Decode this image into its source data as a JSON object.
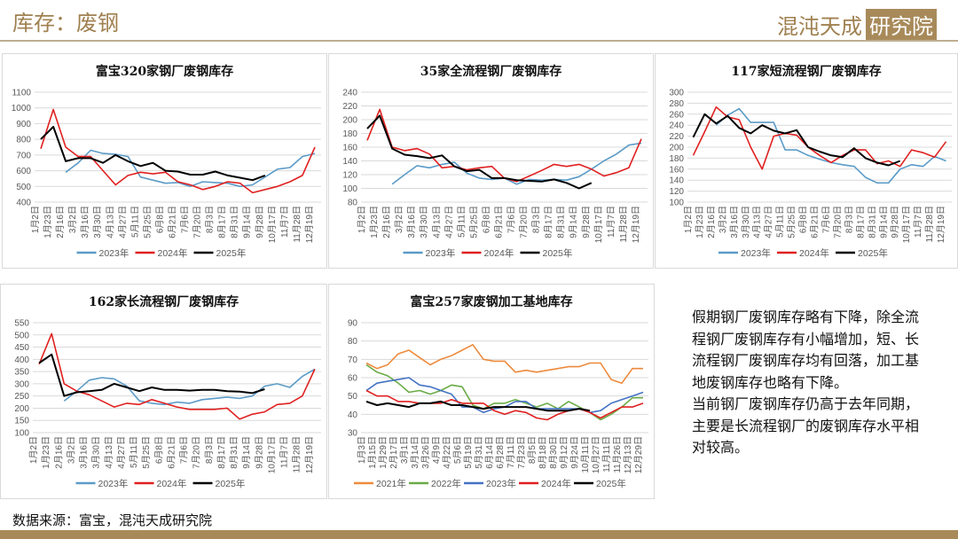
{
  "header": {
    "title": "库存：废钢",
    "logo_text": "混沌天成",
    "logo_box": "研究院"
  },
  "note": [
    "假期钢厂废钢库存略有下降，除全流程钢厂废钢库存有小幅增加，短、长流程钢厂废钢库存均有回落，加工基地废钢库存也略有下降。",
    "当前钢厂废钢库存仍高于去年同期，主要是长流程钢厂的废钢库存水平相对较高。"
  ],
  "source": "数据来源：富宝，混沌天成研究院",
  "chart_data": [
    {
      "type": "line",
      "title": "富宝320家钢厂废钢库存",
      "ylim": [
        400,
        1100
      ],
      "ystep": 100,
      "categories": [
        "1月2日",
        "1月23日",
        "2月16日",
        "3月2日",
        "3月16日",
        "3月30日",
        "4月13日",
        "4月27日",
        "5月11日",
        "5月25日",
        "6月8日",
        "6月21日",
        "7月6日",
        "7月20日",
        "8月3日",
        "8月17日",
        "8月31日",
        "9月14日",
        "9月28日",
        "10月17日",
        "11月7日",
        "11月28日",
        "12月19日"
      ],
      "series": [
        {
          "name": "2023年",
          "color": "#5b9bc8",
          "values": [
            null,
            null,
            590,
            650,
            730,
            710,
            705,
            690,
            560,
            540,
            520,
            525,
            500,
            530,
            525,
            520,
            500,
            510,
            560,
            610,
            620,
            690,
            710
          ]
        },
        {
          "name": "2024年",
          "color": "#e02020",
          "values": [
            740,
            990,
            750,
            690,
            690,
            600,
            510,
            570,
            590,
            580,
            590,
            530,
            510,
            480,
            500,
            530,
            520,
            460,
            480,
            500,
            530,
            570,
            750
          ]
        },
        {
          "name": "2025年",
          "color": "#000000",
          "values": [
            800,
            880,
            660,
            680,
            680,
            650,
            700,
            660,
            630,
            650,
            600,
            595,
            575,
            575,
            595,
            570,
            555,
            540,
            570,
            null,
            null,
            null,
            null
          ]
        }
      ]
    },
    {
      "type": "line",
      "title": "35家全流程钢厂废钢库存",
      "ylim": [
        80,
        240
      ],
      "ystep": 20,
      "categories": [
        "1月2日",
        "1月23日",
        "2月16日",
        "3月2日",
        "3月16日",
        "3月30日",
        "4月13日",
        "4月27日",
        "5月11日",
        "5月25日",
        "6月8日",
        "6月21日",
        "7月6日",
        "7月20日",
        "8月3日",
        "8月17日",
        "8月31日",
        "9月14日",
        "9月28日",
        "10月17日",
        "11月7日",
        "11月28日",
        "12月19日"
      ],
      "series": [
        {
          "name": "2023年",
          "color": "#5b9bc8",
          "values": [
            null,
            null,
            106,
            120,
            133,
            130,
            135,
            138,
            122,
            115,
            113,
            115,
            106,
            113,
            112,
            113,
            112,
            117,
            128,
            140,
            150,
            163,
            166
          ]
        },
        {
          "name": "2024年",
          "color": "#e02020",
          "values": [
            170,
            215,
            160,
            155,
            158,
            150,
            130,
            132,
            127,
            130,
            132,
            115,
            110,
            118,
            126,
            135,
            132,
            135,
            128,
            118,
            123,
            130,
            172
          ]
        },
        {
          "name": "2025年",
          "color": "#000000",
          "values": [
            187,
            206,
            158,
            149,
            147,
            144,
            148,
            132,
            125,
            127,
            115,
            115,
            112,
            111,
            110,
            113,
            108,
            100,
            108,
            null,
            null,
            null,
            null
          ]
        }
      ]
    },
    {
      "type": "line",
      "title": "117家短流程钢厂废钢库存",
      "ylim": [
        100,
        300
      ],
      "ystep": 20,
      "categories": [
        "1月2日",
        "1月23日",
        "2月16日",
        "3月2日",
        "3月16日",
        "3月30日",
        "4月13日",
        "4月27日",
        "5月11日",
        "5月25日",
        "6月8日",
        "6月21日",
        "7月6日",
        "7月20日",
        "8月3日",
        "8月17日",
        "8月31日",
        "9月14日",
        "9月28日",
        "10月17日",
        "11月7日",
        "11月28日",
        "12月19日"
      ],
      "series": [
        {
          "name": "2023年",
          "color": "#5b9bc8",
          "values": [
            null,
            null,
            240,
            258,
            270,
            245,
            245,
            245,
            195,
            195,
            185,
            178,
            172,
            168,
            165,
            145,
            135,
            135,
            160,
            168,
            165,
            183,
            175
          ]
        },
        {
          "name": "2024年",
          "color": "#e02020",
          "values": [
            185,
            228,
            273,
            255,
            250,
            200,
            160,
            220,
            225,
            222,
            200,
            185,
            172,
            185,
            195,
            195,
            170,
            175,
            165,
            195,
            190,
            182,
            210
          ]
        },
        {
          "name": "2025年",
          "color": "#000000",
          "values": [
            218,
            260,
            243,
            257,
            235,
            225,
            240,
            230,
            225,
            231,
            200,
            192,
            185,
            182,
            198,
            180,
            172,
            167,
            175,
            null,
            null,
            null,
            null
          ]
        }
      ]
    },
    {
      "type": "line",
      "title": "162家长流程钢厂废钢库存",
      "ylim": [
        100,
        550
      ],
      "ystep": 50,
      "categories": [
        "1月2日",
        "1月23日",
        "2月16日",
        "3月2日",
        "3月16日",
        "3月30日",
        "4月13日",
        "4月27日",
        "5月11日",
        "5月25日",
        "6月8日",
        "6月21日",
        "7月6日",
        "7月20日",
        "8月3日",
        "8月17日",
        "8月31日",
        "9月14日",
        "9月28日",
        "10月17日",
        "11月7日",
        "11月28日",
        "12月19日"
      ],
      "series": [
        {
          "name": "2023年",
          "color": "#5b9bc8",
          "values": [
            null,
            null,
            230,
            270,
            315,
            325,
            320,
            290,
            230,
            220,
            215,
            225,
            220,
            235,
            240,
            245,
            240,
            250,
            290,
            300,
            285,
            330,
            360
          ]
        },
        {
          "name": "2024年",
          "color": "#e02020",
          "values": [
            380,
            505,
            300,
            270,
            255,
            230,
            205,
            220,
            215,
            235,
            220,
            205,
            195,
            195,
            195,
            200,
            155,
            175,
            185,
            215,
            220,
            250,
            360
          ]
        },
        {
          "name": "2025年",
          "color": "#000000",
          "values": [
            385,
            420,
            250,
            265,
            270,
            275,
            300,
            285,
            270,
            285,
            275,
            275,
            272,
            275,
            275,
            270,
            268,
            262,
            278,
            null,
            null,
            null,
            null
          ]
        }
      ]
    },
    {
      "type": "line",
      "title": "富宝257家废钢加工基地库存",
      "ylim": [
        30,
        90
      ],
      "ystep": 10,
      "categories": [
        "1月3日",
        "1月15日",
        "1月29日",
        "2月17日",
        "3月1日",
        "3月14日",
        "3月26日",
        "4月9日",
        "4月22日",
        "5月6日",
        "5月19日",
        "5月31日",
        "6月14日",
        "6月28日",
        "7月11日",
        "7月23日",
        "8月5日",
        "8月18日",
        "8月30日",
        "9月12日",
        "9月24日",
        "10月11日",
        "10月27日",
        "11月11日",
        "11月26日",
        "12月13日",
        "12月29日"
      ],
      "series": [
        {
          "name": "2021年",
          "color": "#ed8a3c",
          "values": [
            68,
            65,
            67,
            73,
            75,
            71,
            67,
            70,
            72,
            75,
            78,
            70,
            69,
            69,
            63,
            64,
            63,
            64,
            65,
            66,
            66,
            68,
            68,
            59,
            57,
            65,
            65
          ]
        },
        {
          "name": "2022年",
          "color": "#6aab46",
          "values": [
            67,
            63,
            61,
            57,
            52,
            53,
            51,
            53,
            56,
            55,
            45,
            43,
            46,
            46,
            48,
            46,
            44,
            46,
            43,
            47,
            44,
            41,
            37,
            40,
            44,
            49,
            49
          ]
        },
        {
          "name": "2023年",
          "color": "#4472c4",
          "values": [
            53,
            57,
            58,
            59,
            60,
            56,
            55,
            53,
            51,
            44,
            44,
            41,
            43,
            44,
            47,
            47,
            43,
            43,
            43,
            43,
            43,
            41,
            42,
            46,
            48,
            50,
            52
          ]
        },
        {
          "name": "2024年",
          "color": "#e02020",
          "values": [
            53,
            50,
            50,
            47,
            47,
            46,
            46,
            46,
            48,
            46,
            46,
            46,
            42,
            40,
            42,
            41,
            38,
            37,
            40,
            42,
            43,
            41,
            38,
            41,
            44,
            44,
            46
          ]
        },
        {
          "name": "2025年",
          "color": "#000000",
          "values": [
            47,
            45,
            46,
            45,
            44,
            46,
            46,
            47,
            45,
            45,
            44,
            43,
            44,
            44,
            44,
            44,
            43,
            42,
            42,
            42,
            43,
            42,
            null,
            null,
            null,
            null,
            null
          ]
        }
      ]
    }
  ]
}
